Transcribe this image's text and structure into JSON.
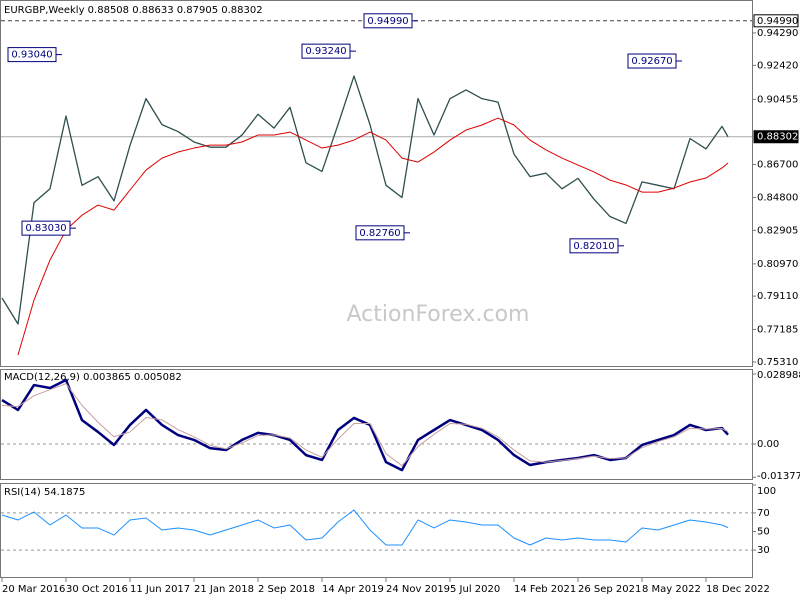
{
  "chart_data": [
    {
      "type": "line",
      "title": "EURGBP,Weekly  0.88508 0.88633 0.87905 0.88302",
      "watermark": "ActionForex.com",
      "x": [
        "2016-03-20",
        "2016-05-15",
        "2016-07-10",
        "2016-09-04",
        "2016-10-30",
        "2016-12-25",
        "2017-02-19",
        "2017-04-16",
        "2017-06-11",
        "2017-08-06",
        "2017-10-01",
        "2017-11-26",
        "2018-01-21",
        "2018-03-18",
        "2018-05-13",
        "2018-07-08",
        "2018-09-02",
        "2018-10-28",
        "2018-12-23",
        "2019-02-17",
        "2019-04-14",
        "2019-06-09",
        "2019-08-04",
        "2019-09-29",
        "2019-11-24",
        "2020-01-19",
        "2020-03-15",
        "2020-05-10",
        "2020-07-05",
        "2020-08-30",
        "2020-10-25",
        "2020-12-20",
        "2021-02-14",
        "2021-04-11",
        "2021-06-06",
        "2021-08-01",
        "2021-09-26",
        "2021-11-21",
        "2022-01-16",
        "2022-03-13",
        "2022-05-08",
        "2022-07-03",
        "2022-08-28",
        "2022-10-23",
        "2022-12-18",
        "2023-02-12",
        "2023-03-05"
      ],
      "xlim": [
        "2016-03-13",
        "2023-05-28"
      ],
      "series": [
        {
          "color": "#2f4f4f",
          "width": 1.3,
          "values": [
            0.79,
            0.775,
            0.845,
            0.853,
            0.895,
            0.855,
            0.86,
            0.846,
            0.878,
            0.905,
            0.89,
            0.886,
            0.88,
            0.877,
            0.877,
            0.884,
            0.896,
            0.888,
            0.9,
            0.868,
            0.863,
            0.89,
            0.918,
            0.89,
            0.855,
            0.848,
            0.905,
            0.884,
            0.905,
            0.91,
            0.905,
            0.903,
            0.873,
            0.86,
            0.862,
            0.853,
            0.859,
            0.847,
            0.837,
            0.833,
            0.857,
            0.855,
            0.853,
            0.882,
            0.876,
            0.889,
            0.88302
          ]
        },
        {
          "color": "#dd0000",
          "width": 1,
          "values": [
            null,
            0.7571,
            0.7888,
            0.8119,
            0.8292,
            0.8378,
            0.8436,
            0.8407,
            0.8523,
            0.8638,
            0.8707,
            0.8742,
            0.8765,
            0.8782,
            0.8782,
            0.88,
            0.884,
            0.884,
            0.8857,
            0.8811,
            0.8765,
            0.8782,
            0.8811,
            0.8857,
            0.8811,
            0.8707,
            0.8684,
            0.8742,
            0.8811,
            0.8869,
            0.8898,
            0.8938,
            0.8898,
            0.8811,
            0.8754,
            0.8707,
            0.8667,
            0.8627,
            0.858,
            0.8552,
            0.8511,
            0.8511,
            0.8534,
            0.8569,
            0.8592,
            0.865,
            0.8679
          ]
        }
      ],
      "ylim": [
        0.7502,
        0.9619
      ],
      "yticks": [
        {
          "value": 0.9429,
          "label": "0.94290"
        },
        {
          "value": 0.9242,
          "label": "0.92420"
        },
        0.90455,
        {
          "value": 0.867,
          "label": "0.86700"
        },
        {
          "value": 0.848,
          "label": "0.84800"
        },
        0.82905,
        {
          "value": 0.8097,
          "label": "0.80970"
        },
        {
          "value": 0.7911,
          "label": "0.79110"
        },
        0.77185,
        {
          "value": 0.7531,
          "label": "0.75310"
        }
      ],
      "price_lines": [
        {
          "value": 0.9499,
          "label": "0.94990",
          "style": "dashed"
        },
        {
          "value": 0.88302,
          "label": "0.88302",
          "style": "current"
        }
      ],
      "annotations": [
        {
          "x": "2016-10-16",
          "value": 0.9304,
          "label": "0.93040"
        },
        {
          "x": "2016-12-04",
          "value": 0.8303,
          "label": "0.83030"
        },
        {
          "x": "2019-08-11",
          "value": 0.9324,
          "label": "0.93240"
        },
        {
          "x": "2020-03-15",
          "value": 0.9499,
          "label": "0.94990"
        },
        {
          "x": "2020-02-16",
          "value": 0.8276,
          "label": "0.82760"
        },
        {
          "x": "2022-09-25",
          "value": 0.9267,
          "label": "0.92670"
        },
        {
          "x": "2022-03-06",
          "value": 0.8201,
          "label": "0.82010"
        }
      ]
    },
    {
      "type": "line",
      "title": "MACD(12,26,9) 0.003865 0.005082",
      "x": [
        "2016-03-20",
        "2016-05-15",
        "2016-07-10",
        "2016-09-04",
        "2016-10-30",
        "2016-12-25",
        "2017-02-19",
        "2017-04-16",
        "2017-06-11",
        "2017-08-06",
        "2017-10-01",
        "2017-11-26",
        "2018-01-21",
        "2018-03-18",
        "2018-05-13",
        "2018-07-08",
        "2018-09-02",
        "2018-10-28",
        "2018-12-23",
        "2019-02-17",
        "2019-04-14",
        "2019-06-09",
        "2019-08-04",
        "2019-09-29",
        "2019-11-24",
        "2020-01-19",
        "2020-03-15",
        "2020-05-10",
        "2020-07-05",
        "2020-08-30",
        "2020-10-25",
        "2020-12-20",
        "2021-02-14",
        "2021-04-11",
        "2021-06-06",
        "2021-08-01",
        "2021-09-26",
        "2021-11-21",
        "2022-01-16",
        "2022-03-13",
        "2022-05-08",
        "2022-07-03",
        "2022-08-28",
        "2022-10-23",
        "2022-12-18",
        "2023-02-12",
        "2023-03-05"
      ],
      "xlim": [
        "2016-03-13",
        "2023-05-28"
      ],
      "series": [
        {
          "color": "#00007f",
          "width": 2.5,
          "values": [
            0.0182,
            0.0141,
            0.0244,
            0.0232,
            0.0265,
            0.0099,
            0.005,
            -0.0004,
            0.0079,
            0.0141,
            0.0079,
            0.0037,
            0.0017,
            -0.0017,
            -0.0025,
            0.0017,
            0.0046,
            0.0037,
            0.0017,
            -0.0046,
            -0.0066,
            0.0058,
            0.0108,
            0.0079,
            -0.0075,
            -0.0108,
            0.0017,
            0.0058,
            0.0099,
            0.0079,
            0.0058,
            0.0017,
            -0.0046,
            -0.0087,
            -0.0075,
            -0.0066,
            -0.0058,
            -0.0046,
            -0.0066,
            -0.0058,
            -0.0004,
            0.0017,
            0.0037,
            0.0079,
            0.0058,
            0.0066,
            0.003865
          ]
        },
        {
          "color": "#c8a0a0",
          "width": 1,
          "values": [
            0.016,
            0.0155,
            0.02,
            0.0225,
            0.025,
            0.016,
            0.009,
            0.003,
            0.005,
            0.011,
            0.01,
            0.006,
            0.003,
            -0.0005,
            -0.002,
            0.0005,
            0.0035,
            0.0038,
            0.0025,
            -0.0025,
            -0.0055,
            0.002,
            0.0085,
            0.0085,
            -0.004,
            -0.009,
            -0.001,
            0.004,
            0.0085,
            0.0082,
            0.0065,
            0.003,
            -0.0025,
            -0.007,
            -0.0075,
            -0.0068,
            -0.006,
            -0.005,
            -0.006,
            -0.0058,
            -0.0015,
            0.001,
            0.003,
            0.0065,
            0.0062,
            0.0064,
            0.005082
          ]
        }
      ],
      "ylim": [
        -0.0149,
        0.031058
      ],
      "yticks": [
        0.028988,
        {
          "value": 0,
          "label": "0.00"
        },
        -0.013779
      ],
      "levels": [
        0
      ]
    },
    {
      "type": "line",
      "title": "RSI(14) 54.1875",
      "x": [
        "2016-03-20",
        "2016-05-15",
        "2016-07-10",
        "2016-09-04",
        "2016-10-30",
        "2016-12-25",
        "2017-02-19",
        "2017-04-16",
        "2017-06-11",
        "2017-08-06",
        "2017-10-01",
        "2017-11-26",
        "2018-01-21",
        "2018-03-18",
        "2018-05-13",
        "2018-07-08",
        "2018-09-02",
        "2018-10-28",
        "2018-12-23",
        "2019-02-17",
        "2019-04-14",
        "2019-06-09",
        "2019-08-04",
        "2019-09-29",
        "2019-11-24",
        "2020-01-19",
        "2020-03-15",
        "2020-05-10",
        "2020-07-05",
        "2020-08-30",
        "2020-10-25",
        "2020-12-20",
        "2021-02-14",
        "2021-04-11",
        "2021-06-06",
        "2021-08-01",
        "2021-09-26",
        "2021-11-21",
        "2022-01-16",
        "2022-03-13",
        "2022-05-08",
        "2022-07-03",
        "2022-08-28",
        "2022-10-23",
        "2022-12-18",
        "2023-02-12",
        "2023-03-05"
      ],
      "xlim": [
        "2016-03-13",
        "2023-05-28"
      ],
      "series": [
        {
          "color": "#1e90ff",
          "width": 1,
          "values": [
            67.7,
            62.4,
            71.0,
            57.0,
            67.7,
            53.8,
            53.8,
            46.2,
            62.4,
            64.5,
            51.6,
            53.8,
            51.6,
            46.2,
            51.6,
            57.0,
            62.4,
            53.8,
            57.0,
            40.9,
            43.0,
            60.2,
            73.1,
            51.6,
            35.5,
            35.5,
            62.4,
            53.8,
            62.4,
            60.2,
            57.0,
            57.0,
            43.0,
            35.5,
            43.0,
            40.9,
            43.0,
            40.9,
            40.9,
            38.7,
            53.8,
            51.6,
            57.0,
            62.4,
            60.2,
            57.0,
            54.1875
          ]
        }
      ],
      "ylim": [
        0,
        100
      ],
      "yticks": [
        100,
        70,
        50,
        30
      ],
      "levels": [
        70,
        30
      ],
      "xticks": [
        {
          "value": "2016-03-20",
          "label": "20 Mar 2016"
        },
        {
          "value": "2016-10-30",
          "label": "30 Oct 2016"
        },
        {
          "value": "2017-06-11",
          "label": "11 Jun 2017"
        },
        {
          "value": "2018-01-21",
          "label": "21 Jan 2018"
        },
        {
          "value": "2018-09-02",
          "label": "2 Sep 2018"
        },
        {
          "value": "2019-04-14",
          "label": "14 Apr 2019"
        },
        {
          "value": "2019-11-24",
          "label": "24 Nov 2019"
        },
        {
          "value": "2020-07-05",
          "label": "5 Jul 2020"
        },
        {
          "value": "2021-02-14",
          "label": "14 Feb 2021"
        },
        {
          "value": "2021-09-26",
          "label": "26 Sep 2021"
        },
        {
          "value": "2022-05-08",
          "label": "8 May 2022"
        },
        {
          "value": "2022-12-18",
          "label": "18 Dec 2022"
        }
      ]
    }
  ]
}
